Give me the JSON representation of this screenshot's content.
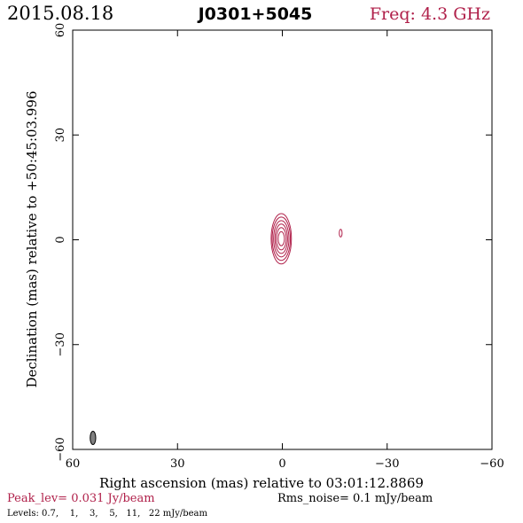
{
  "header": {
    "date": "2015.08.18",
    "source": "J0301+5045",
    "freq": "Freq: 4.3 GHz"
  },
  "axes": {
    "xlabel": "Right ascension (mas) relative to 03:01:12.8869",
    "ylabel": "Declination (mas) relative to +50:45:03.996"
  },
  "footer": {
    "peak": "Peak_lev=  0.031 Jy/beam",
    "rms": "Rms_noise=  0.1 mJy/beam",
    "levels": "Levels: 0.7,    1,    3,    5,   11,   22 mJy/beam"
  },
  "colors": {
    "contour": "#b0204a",
    "text": "#000000",
    "beam_fill": "#808080",
    "frame": "#000000"
  },
  "chart_data": {
    "type": "contour",
    "xlim": [
      60,
      -60
    ],
    "ylim": [
      -60,
      60
    ],
    "x_ticks": [
      60,
      30,
      0,
      -30,
      -60
    ],
    "x_tick_labels": [
      "60",
      "30",
      "0",
      "−30",
      "−60"
    ],
    "y_ticks": [
      -60,
      -30,
      0,
      30,
      60
    ],
    "y_tick_labels": [
      "−60",
      "−30",
      "0",
      "30",
      "60"
    ],
    "levels_mJy": [
      0.7,
      1,
      3,
      5,
      11,
      22
    ],
    "components": [
      {
        "name": "core",
        "x": 0.3,
        "y": 0.3,
        "contours": [
          {
            "rx": 2.9,
            "ry": 7.2
          },
          {
            "rx": 2.6,
            "ry": 6.2
          },
          {
            "rx": 2.2,
            "ry": 5.2
          },
          {
            "rx": 1.8,
            "ry": 4.2
          },
          {
            "rx": 1.4,
            "ry": 3.2
          },
          {
            "rx": 0.9,
            "ry": 2.0
          }
        ]
      },
      {
        "name": "knot",
        "x": -16.7,
        "y": 1.9,
        "contours": [
          {
            "rx": 0.4,
            "ry": 1.1
          }
        ]
      }
    ],
    "beam": {
      "x": 54.2,
      "y": -56.7,
      "rx": 0.8,
      "ry": 1.9
    }
  }
}
